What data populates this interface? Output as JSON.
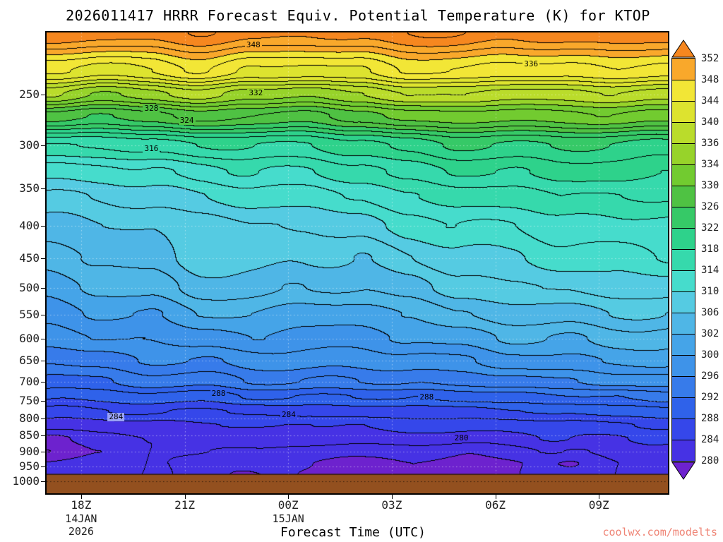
{
  "title": "2026011417 HRRR Forecast Equiv. Potential Temperature (K) for KTOP",
  "xlabel": "Forecast Time (UTC)",
  "watermark": "coolwx.com/modelts",
  "watermark_color": "#ef8576",
  "chart_data": {
    "type": "heatmap",
    "subtype": "filled-contour-time-height",
    "title": "2026011417 HRRR Forecast Equiv. Potential Temperature (K) for KTOP",
    "xlabel": "Forecast Time (UTC)",
    "ylabel": "",
    "units": "K",
    "contour_interval_K": 2,
    "x_domain": [
      17,
      35
    ],
    "y_domain": [
      200,
      1045
    ],
    "y_log": true,
    "grid_on": true,
    "x_ticks": [
      {
        "hour": 18,
        "label": "18Z"
      },
      {
        "hour": 21,
        "label": "21Z"
      },
      {
        "hour": 24,
        "label": "00Z"
      },
      {
        "hour": 27,
        "label": "03Z"
      },
      {
        "hour": 30,
        "label": "06Z"
      },
      {
        "hour": 33,
        "label": "09Z"
      }
    ],
    "x_sublabels": [
      {
        "hour": 18,
        "lines": [
          "14JAN",
          "2026"
        ]
      },
      {
        "hour": 24,
        "lines": [
          "15JAN"
        ]
      }
    ],
    "y_ticks": [
      250,
      300,
      350,
      400,
      450,
      500,
      550,
      600,
      650,
      700,
      750,
      800,
      850,
      900,
      950,
      1000
    ],
    "thresholds": [
      280,
      284,
      288,
      292,
      296,
      300,
      302,
      306,
      310,
      314,
      318,
      322,
      326,
      330,
      334,
      336,
      340,
      344,
      348,
      352
    ],
    "fills": [
      "#6d22ce",
      "#4632e4",
      "#3547ea",
      "#2f62ea",
      "#377bea",
      "#3e93e9",
      "#45a4e8",
      "#4fb6e6",
      "#55cbe2",
      "#46dccc",
      "#36d9ac",
      "#2ed28b",
      "#36c967",
      "#4fc243",
      "#72cb30",
      "#97d32a",
      "#badc2b",
      "#dde32f",
      "#f2e636",
      "#f9a82b",
      "#f6871f"
    ],
    "ground_pressure": 975,
    "ground_color": "#93501f",
    "contour_labels": [
      {
        "text": "348",
        "x": 0.335,
        "y": 0.03
      },
      {
        "text": "336",
        "x": 0.782,
        "y": 0.072
      },
      {
        "text": "332",
        "x": 0.339,
        "y": 0.135
      },
      {
        "text": "328",
        "x": 0.171,
        "y": 0.168
      },
      {
        "text": "324",
        "x": 0.228,
        "y": 0.195
      },
      {
        "text": "316",
        "x": 0.171,
        "y": 0.256
      },
      {
        "text": "288",
        "x": 0.279,
        "y": 0.787
      },
      {
        "text": "288",
        "x": 0.614,
        "y": 0.795
      },
      {
        "text": "284",
        "x": 0.114,
        "y": 0.838
      },
      {
        "text": "284",
        "x": 0.392,
        "y": 0.833
      },
      {
        "text": "280",
        "x": 0.67,
        "y": 0.884
      }
    ],
    "grid": {
      "time_hours": [
        17,
        18.5,
        20,
        21.5,
        23,
        24.5,
        26,
        27.5,
        29,
        30.5,
        32,
        33.5,
        35
      ],
      "pressures": [
        200,
        230,
        250,
        270,
        300,
        330,
        360,
        400,
        450,
        500,
        550,
        600,
        650,
        700,
        740,
        780,
        820,
        860,
        900,
        940,
        980,
        1045
      ],
      "values": [
        [
          354,
          353,
          353,
          354,
          353,
          352,
          353,
          354,
          354,
          353,
          353,
          354,
          353
        ],
        [
          344,
          343,
          344,
          346,
          344,
          343,
          344,
          346,
          346,
          345,
          345,
          346,
          345
        ],
        [
          336,
          334,
          335,
          337,
          335,
          334,
          336,
          338,
          338,
          337,
          337,
          338,
          337
        ],
        [
          327,
          326,
          327,
          329,
          328,
          327,
          329,
          331,
          331,
          331,
          331,
          332,
          331
        ],
        [
          316,
          316,
          317,
          318,
          318,
          318,
          319,
          321,
          322,
          322,
          322,
          322,
          321
        ],
        [
          311,
          311,
          312,
          313,
          314,
          314,
          315,
          317,
          318,
          318,
          319,
          319,
          318
        ],
        [
          308,
          308,
          309,
          310,
          311,
          311,
          312,
          314,
          315,
          315,
          316,
          316,
          316
        ],
        [
          305,
          306,
          306,
          307,
          308,
          308,
          309,
          311,
          312,
          312,
          313,
          314,
          313
        ],
        [
          303,
          304,
          305,
          307,
          307,
          306,
          306,
          308,
          309,
          310,
          311,
          311,
          312
        ],
        [
          301,
          302,
          303,
          305,
          305,
          304,
          304,
          305,
          307,
          308,
          308,
          309,
          309
        ],
        [
          299,
          300,
          300,
          302,
          302,
          301,
          301,
          302,
          304,
          305,
          305,
          306,
          306
        ],
        [
          297,
          298,
          298,
          299,
          300,
          299,
          299,
          300,
          301,
          302,
          302,
          303,
          303
        ],
        [
          294,
          295,
          296,
          296,
          297,
          297,
          297,
          297,
          298,
          299,
          300,
          300,
          301
        ],
        [
          291,
          292,
          293,
          293,
          294,
          294,
          294,
          294,
          295,
          295,
          296,
          297,
          297
        ],
        [
          288,
          289,
          289,
          289,
          290,
          290,
          290,
          290,
          291,
          291,
          292,
          292,
          293
        ],
        [
          285,
          286,
          286,
          286,
          286,
          287,
          287,
          287,
          287,
          288,
          288,
          289,
          289
        ],
        [
          283,
          283,
          283,
          284,
          284,
          284,
          284,
          285,
          285,
          285,
          285,
          286,
          286
        ],
        [
          279.5,
          281,
          282,
          282.5,
          283,
          283,
          283,
          283,
          283,
          283,
          284,
          284,
          284
        ],
        [
          278,
          280,
          282,
          282,
          282,
          281,
          281,
          280.5,
          280.5,
          281,
          282,
          283,
          283
        ],
        [
          280,
          281,
          282,
          281,
          281,
          279.8,
          279.5,
          279.5,
          279.8,
          279.5,
          280,
          282,
          282
        ],
        [
          281,
          282,
          282,
          281,
          280,
          279.5,
          279.3,
          279.3,
          279.5,
          279.5,
          281,
          282,
          282
        ],
        [
          282,
          282,
          283,
          282,
          281,
          280,
          280,
          280,
          280,
          281,
          282,
          283,
          283
        ]
      ]
    }
  }
}
